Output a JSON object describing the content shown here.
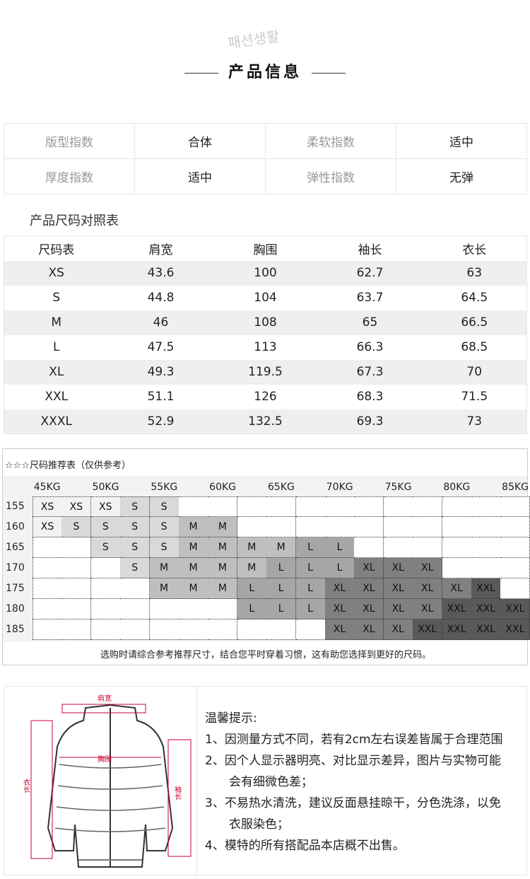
{
  "header": {
    "title": "产品信息",
    "watermark": "패션생활"
  },
  "attributes": [
    [
      {
        "k": "版型指数",
        "v": "合体"
      },
      {
        "k": "柔软指数",
        "v": "适中"
      }
    ],
    [
      {
        "k": "厚度指数",
        "v": "适中"
      },
      {
        "k": "弹性指数",
        "v": "无弹"
      }
    ]
  ],
  "size_table": {
    "title": "产品尺码对照表",
    "headers": [
      "尺码表",
      "肩宽",
      "胸围",
      "袖长",
      "衣长"
    ],
    "rows": [
      [
        "XS",
        "43.6",
        "100",
        "62.7",
        "63"
      ],
      [
        "S",
        "44.8",
        "104",
        "63.7",
        "64.5"
      ],
      [
        "M",
        "46",
        "108",
        "65",
        "66.5"
      ],
      [
        "L",
        "47.5",
        "113",
        "66.3",
        "68.5"
      ],
      [
        "XL",
        "49.3",
        "119.5",
        "67.3",
        "70"
      ],
      [
        "XXL",
        "51.1",
        "126",
        "68.3",
        "71.5"
      ],
      [
        "XXXL",
        "52.9",
        "132.5",
        "69.3",
        "73"
      ]
    ]
  },
  "recommend": {
    "title": "☆☆☆尺码推荐表（仅供参考）",
    "weights": [
      "45KG",
      "50KG",
      "55KG",
      "60KG",
      "65KG",
      "70KG",
      "75KG",
      "80KG",
      "85KG"
    ],
    "heights": [
      "155",
      "160",
      "165",
      "170",
      "175",
      "180",
      "185"
    ],
    "grid": [
      [
        "XS",
        "XS",
        "XS",
        "S",
        "S",
        "",
        "",
        "",
        "",
        "",
        "",
        "",
        "",
        "",
        "",
        "",
        ""
      ],
      [
        "XS",
        "S",
        "S",
        "S",
        "S",
        "M",
        "M",
        "",
        "",
        "",
        "",
        "",
        "",
        "",
        "",
        "",
        ""
      ],
      [
        "",
        "",
        "S",
        "S",
        "S",
        "M",
        "M",
        "M",
        "M",
        "L",
        "L",
        "",
        "",
        "",
        "",
        "",
        ""
      ],
      [
        "",
        "",
        "",
        "S",
        "M",
        "M",
        "M",
        "M",
        "L",
        "L",
        "L",
        "XL",
        "XL",
        "XL",
        "",
        "",
        ""
      ],
      [
        "",
        "",
        "",
        "",
        "M",
        "M",
        "M",
        "L",
        "L",
        "L",
        "XL",
        "XL",
        "XL",
        "XL",
        "XL",
        "XXL",
        ""
      ],
      [
        "",
        "",
        "",
        "",
        "",
        "",
        "",
        "L",
        "L",
        "L",
        "XL",
        "XL",
        "XL",
        "XL",
        "XXL",
        "XXL",
        "XXL"
      ],
      [
        "",
        "",
        "",
        "",
        "",
        "",
        "",
        "",
        "",
        "",
        "XL",
        "XL",
        "XL",
        "XXL",
        "XXL",
        "XXL",
        "XXL"
      ]
    ],
    "colors": {
      "XS": "#f2f2f2",
      "S": "#d9d9d9",
      "M": "#bfbfbf",
      "L": "#a6a6a6",
      "XL": "#808080",
      "XXL": "#595959",
      "": "#ffffff"
    },
    "footer": "选购时请综合参考推荐尺寸，结合您平时穿着习惯，这有助您选择到更好的尺码。"
  },
  "diagram": {
    "shoulder": "肩宽",
    "chest": "胸围",
    "length": "衣长",
    "sleeve": "袖长"
  },
  "tips": {
    "title": "温馨提示:",
    "lines": [
      "1、因测量方式不同，若有2cm左右误差皆属于合理范围",
      "2、因个人显示器明亮、对比显示差异，图片与实物可能",
      "　　会有细微色差；",
      "3、不易热水清洗，建议反面悬挂晾干，分色洗涤，以免",
      "　　衣服染色；",
      "4、模特的所有搭配品本店概不出售。"
    ]
  }
}
